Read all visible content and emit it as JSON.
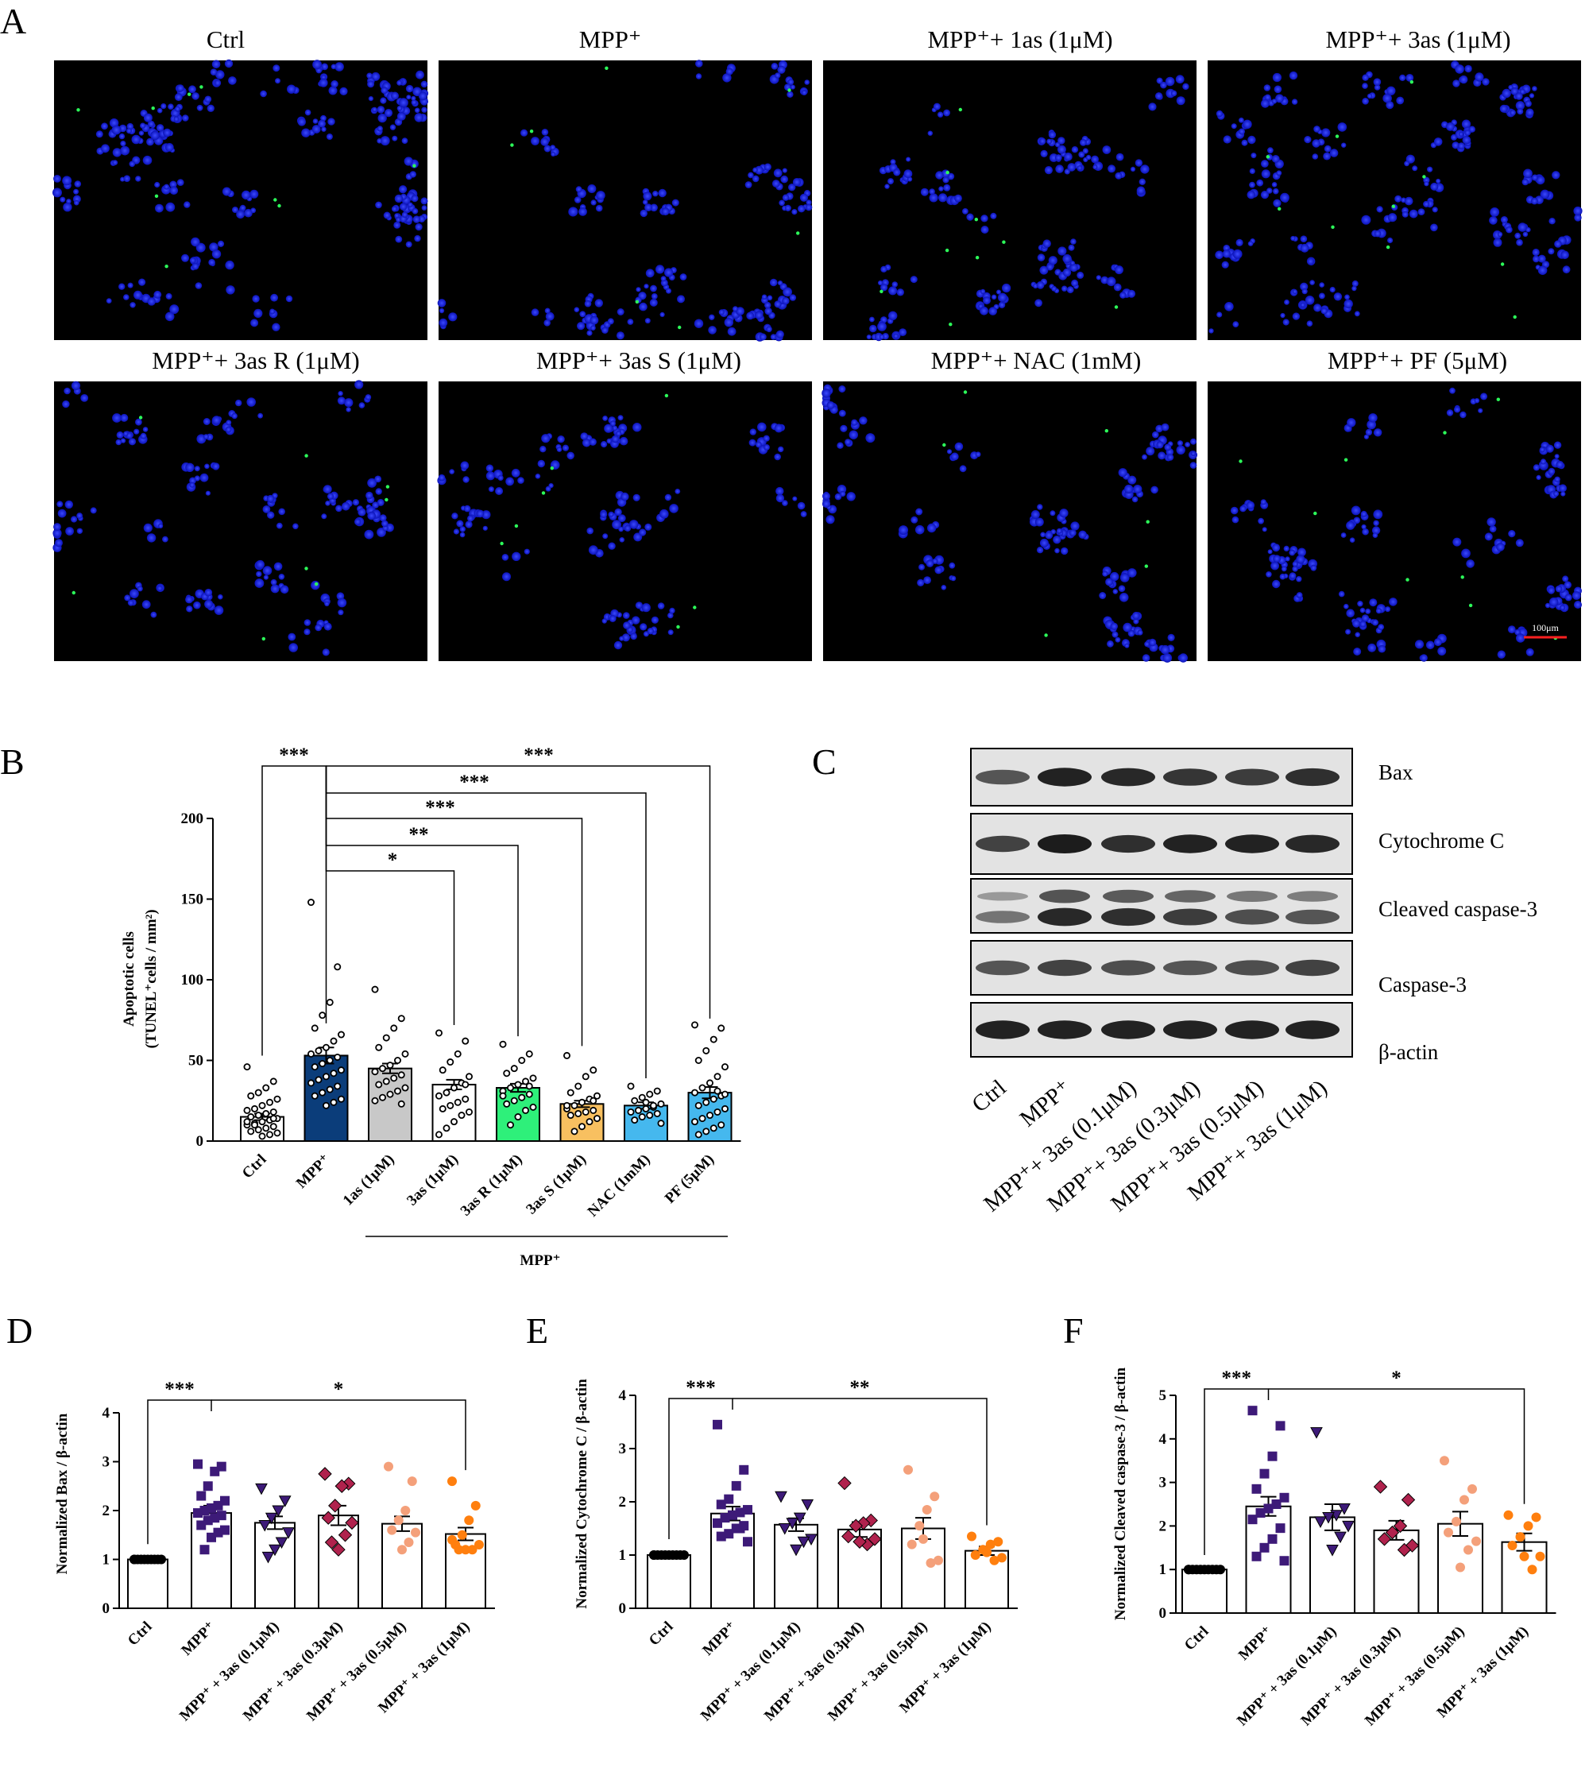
{
  "panel_letters": [
    "A",
    "B",
    "C",
    "D",
    "E",
    "F"
  ],
  "microscopy": {
    "titles": [
      "Ctrl",
      "MPP⁺",
      "MPP⁺+ 1as (1μM)",
      "MPP⁺+ 3as (1μM)",
      "MPP⁺+ 3as R (1μM)",
      "MPP⁺+ 3as S (1μM)",
      "MPP⁺+ NAC (1mM)",
      "MPP⁺+ PF (5μM)"
    ],
    "scale_bar_label": "100μm",
    "colors": {
      "background": "#000000",
      "nuclei": "#1f2bff",
      "tunel": "#2cff5a",
      "scale_bar": "#ff2020"
    }
  },
  "western_blot": {
    "labels": [
      "Bax",
      "Cytochrome C",
      "Cleaved caspase-3",
      "Caspase-3",
      "β-actin"
    ],
    "lanes": [
      "Ctrl",
      "MPP⁺",
      "MPP⁺+ 3as (0.1μM)",
      "MPP⁺+ 3as (0.3μM)",
      "MPP⁺+ 3as (0.5μM)",
      "MPP⁺+ 3as (1μM)"
    ]
  },
  "chart_data": [
    {
      "id": "B",
      "type": "bar",
      "ylabel_line1": "Apoptotic cells",
      "ylabel_line2": "(TUNEL⁺cells / mm²)",
      "ylim": [
        0,
        200
      ],
      "yticks": [
        0,
        50,
        100,
        150,
        200
      ],
      "categories": [
        "Ctrl",
        "MPP⁺",
        "1as (1μM)",
        "3as (1μM)",
        "3as R (1μM)",
        "3as S (1μM)",
        "NAC (1mM)",
        "PF (5μM)"
      ],
      "group_label": "MPP⁺",
      "values": [
        15,
        53,
        45,
        35,
        33,
        23,
        22,
        30
      ],
      "errors": [
        2,
        5,
        3,
        3,
        2.5,
        2,
        2,
        3.5
      ],
      "colors": [
        "#ffffff",
        "#0b3d7a",
        "#c8c8c8",
        "#ffffff",
        "#2ef07a",
        "#f8c060",
        "#45b8ee",
        "#45b8ee"
      ],
      "points": [
        [
          46,
          37,
          33,
          30,
          28,
          26,
          24,
          22,
          20,
          19,
          18,
          17,
          16,
          15,
          14,
          13,
          12,
          11,
          10,
          9,
          8,
          7,
          6,
          5,
          4,
          3,
          10,
          12,
          14
        ],
        [
          148,
          108,
          86,
          78,
          70,
          66,
          62,
          58,
          56,
          54,
          52,
          50,
          48,
          46,
          44,
          42,
          40,
          38,
          36,
          34,
          32,
          30,
          28,
          26,
          24,
          22
        ],
        [
          94,
          76,
          70,
          64,
          58,
          54,
          50,
          47,
          45,
          43,
          41,
          39,
          37,
          35,
          33,
          31,
          29,
          27,
          25,
          23
        ],
        [
          67,
          62,
          54,
          49,
          44,
          40,
          36,
          33,
          30,
          28,
          26,
          24,
          22,
          20,
          18,
          16,
          12,
          8,
          4,
          35
        ],
        [
          60,
          54,
          50,
          45,
          42,
          39,
          37,
          35,
          33,
          31,
          29,
          27,
          25,
          23,
          21,
          19,
          15,
          10,
          28,
          34
        ],
        [
          53,
          44,
          40,
          34,
          30,
          28,
          26,
          24,
          22,
          20,
          19,
          18,
          17,
          16,
          14,
          12,
          9,
          6,
          22,
          25
        ],
        [
          34,
          31,
          29,
          27,
          25,
          23,
          21,
          20,
          19,
          18,
          17,
          16,
          15,
          13,
          11,
          22,
          24
        ],
        [
          72,
          70,
          63,
          56,
          50,
          46,
          40,
          36,
          33,
          30,
          28,
          26,
          24,
          22,
          20,
          18,
          16,
          14,
          12,
          10,
          8,
          6,
          4,
          29,
          31
        ]
      ],
      "point_style": "open-circle",
      "significance": [
        {
          "from": "Ctrl",
          "to": "MPP⁺",
          "label": "***"
        },
        {
          "from": "MPP⁺",
          "to": "PF (5μM)",
          "label": "***"
        },
        {
          "from": "MPP⁺",
          "to": "NAC (1mM)",
          "label": "***"
        },
        {
          "from": "MPP⁺",
          "to": "3as S (1μM)",
          "label": "***"
        },
        {
          "from": "MPP⁺",
          "to": "3as R (1μM)",
          "label": "**"
        },
        {
          "from": "MPP⁺",
          "to": "3as (1μM)",
          "label": "*"
        }
      ]
    },
    {
      "id": "D",
      "type": "bar",
      "ylabel": "Normalized  Bax / β-actin",
      "ylim": [
        0,
        4
      ],
      "yticks": [
        0,
        1,
        2,
        3,
        4
      ],
      "categories": [
        "Ctrl",
        "MPP⁺",
        "MPP⁺ + 3as (0.1μM)",
        "MPP⁺ + 3as (0.3μM)",
        "MPP⁺ + 3as (0.5μM)",
        "MPP⁺ + 3as (1μM)"
      ],
      "values": [
        1.0,
        1.95,
        1.75,
        1.9,
        1.73,
        1.52
      ],
      "errors": [
        0.02,
        0.15,
        0.13,
        0.2,
        0.15,
        0.13
      ],
      "point_colors": [
        "#000000",
        "#3d1a78",
        "#3d1a78",
        "#b0224d",
        "#f4a07a",
        "#ff7f0e"
      ],
      "point_markers": [
        "circle",
        "square",
        "triangle-down",
        "diamond",
        "circle",
        "circle"
      ],
      "points": [
        [
          1,
          1,
          1,
          1,
          1,
          1,
          1,
          1,
          1,
          1
        ],
        [
          2.95,
          2.9,
          2.8,
          2.5,
          2.3,
          2.2,
          2.1,
          2.05,
          2.0,
          1.95,
          1.9,
          1.85,
          1.8,
          1.7,
          1.6,
          1.55,
          1.45,
          1.2
        ],
        [
          2.45,
          2.2,
          2.0,
          1.85,
          1.7,
          1.55,
          1.35,
          1.2,
          1.05
        ],
        [
          2.75,
          2.55,
          2.5,
          2.1,
          1.85,
          1.75,
          1.5,
          1.2,
          1.35
        ],
        [
          2.9,
          2.6,
          2.0,
          1.8,
          1.6,
          1.55,
          1.35,
          1.2
        ],
        [
          2.6,
          2.1,
          1.8,
          1.5,
          1.3,
          1.3,
          1.2,
          1.2,
          1.2,
          1.4
        ]
      ],
      "significance": [
        {
          "from": "Ctrl",
          "to": "MPP⁺",
          "label": "***"
        },
        {
          "from": "MPP⁺",
          "to": "MPP⁺ + 3as (1μM)",
          "label": "*"
        }
      ]
    },
    {
      "id": "E",
      "type": "bar",
      "ylabel": "Normalized  Cytochrome C / β-actin",
      "ylim": [
        0,
        4
      ],
      "yticks": [
        0,
        1,
        2,
        3,
        4
      ],
      "categories": [
        "Ctrl",
        "MPP⁺",
        "MPP⁺ + 3as (0.1μM)",
        "MPP⁺ + 3as (0.3μM)",
        "MPP⁺ + 3as (0.5μM)",
        "MPP⁺ + 3as (1μM)"
      ],
      "values": [
        1.0,
        1.78,
        1.57,
        1.48,
        1.5,
        1.08
      ],
      "errors": [
        0.02,
        0.13,
        0.12,
        0.14,
        0.2,
        0.08
      ],
      "point_colors": [
        "#000000",
        "#3d1a78",
        "#3d1a78",
        "#b0224d",
        "#f4a07a",
        "#ff7f0e"
      ],
      "point_markers": [
        "circle",
        "square",
        "triangle-down",
        "diamond",
        "circle",
        "circle"
      ],
      "points": [
        [
          1,
          1,
          1,
          1,
          1,
          1,
          1,
          1,
          1,
          1
        ],
        [
          3.45,
          2.6,
          2.3,
          2.05,
          1.95,
          1.85,
          1.8,
          1.75,
          1.7,
          1.6,
          1.55,
          1.5,
          1.4,
          1.35,
          1.25,
          1.5
        ],
        [
          2.1,
          1.95,
          1.7,
          1.6,
          1.5,
          1.3,
          1.25,
          1.1
        ],
        [
          2.35,
          1.65,
          1.6,
          1.55,
          1.35,
          1.3,
          1.2,
          1.25
        ],
        [
          2.6,
          2.1,
          1.85,
          1.55,
          1.2,
          0.9,
          0.85,
          1.3
        ],
        [
          1.35,
          1.25,
          1.2,
          1.1,
          1.0,
          0.95,
          0.9,
          1.05
        ]
      ],
      "significance": [
        {
          "from": "Ctrl",
          "to": "MPP⁺",
          "label": "***"
        },
        {
          "from": "MPP⁺",
          "to": "MPP⁺ + 3as (1μM)",
          "label": "**"
        }
      ]
    },
    {
      "id": "F",
      "type": "bar",
      "ylabel": "Normalized Cleaved caspase-3 / β-actin",
      "ylim": [
        0,
        5
      ],
      "yticks": [
        0,
        1,
        2,
        3,
        4,
        5
      ],
      "categories": [
        "Ctrl",
        "MPP⁺",
        "MPP⁺ + 3as (0.1μM)",
        "MPP⁺ + 3as (0.3μM)",
        "MPP⁺ + 3as (0.5μM)",
        "MPP⁺ + 3as (1μM)"
      ],
      "values": [
        1.0,
        2.45,
        2.2,
        1.9,
        2.05,
        1.63
      ],
      "errors": [
        0.02,
        0.22,
        0.3,
        0.22,
        0.28,
        0.2
      ],
      "point_colors": [
        "#000000",
        "#3d1a78",
        "#3d1a78",
        "#b0224d",
        "#f4a07a",
        "#ff7f0e"
      ],
      "point_markers": [
        "circle",
        "square",
        "triangle-down",
        "diamond",
        "circle",
        "circle"
      ],
      "points": [
        [
          1,
          1,
          1,
          1,
          1,
          1,
          1,
          1,
          1,
          1
        ],
        [
          4.65,
          4.3,
          3.6,
          3.2,
          2.85,
          2.65,
          2.5,
          2.4,
          2.3,
          2.15,
          1.95,
          1.7,
          1.5,
          1.3,
          1.2
        ],
        [
          4.15,
          2.4,
          2.25,
          2.2,
          2.1,
          2.0,
          1.75,
          1.45
        ],
        [
          2.9,
          2.6,
          2.0,
          1.85,
          1.7,
          1.55,
          1.45
        ],
        [
          3.5,
          2.85,
          2.6,
          2.1,
          1.85,
          1.65,
          1.45,
          1.05
        ],
        [
          2.25,
          2.2,
          2.0,
          1.75,
          1.55,
          1.3,
          1.0,
          1.3
        ]
      ],
      "significance": [
        {
          "from": "Ctrl",
          "to": "MPP⁺",
          "label": "***"
        },
        {
          "from": "MPP⁺",
          "to": "MPP⁺ + 3as (1μM)",
          "label": "*"
        }
      ]
    }
  ]
}
